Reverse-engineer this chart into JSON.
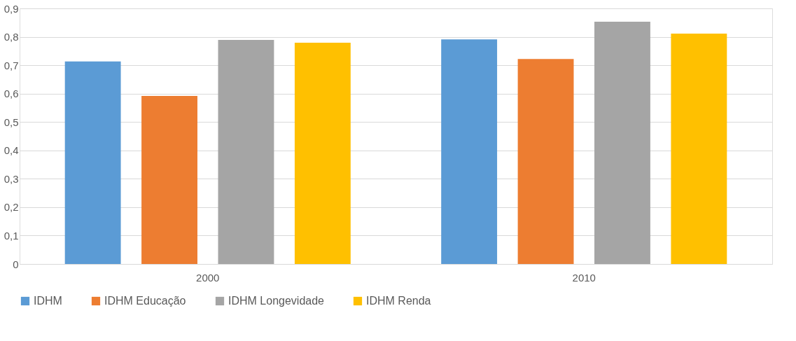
{
  "chart_data": {
    "type": "bar",
    "categories": [
      "2000",
      "2010"
    ],
    "series": [
      {
        "name": "IDHM",
        "color": "#5b9bd5",
        "values": [
          0.713,
          0.791
        ]
      },
      {
        "name": "IDHM Educação",
        "color": "#ed7d31",
        "values": [
          0.592,
          0.722
        ]
      },
      {
        "name": "IDHM Longevidade",
        "color": "#a5a5a5",
        "values": [
          0.789,
          0.853
        ]
      },
      {
        "name": "IDHM Renda",
        "color": "#ffc000",
        "values": [
          0.779,
          0.811
        ]
      }
    ],
    "ylim": [
      0,
      0.9
    ],
    "yticks": [
      0,
      {
        "value": 0.1,
        "label": "0,1"
      },
      {
        "value": 0.2,
        "label": "0,2"
      },
      {
        "value": 0.3,
        "label": "0,3"
      },
      {
        "value": 0.4,
        "label": "0,4"
      },
      {
        "value": 0.5,
        "label": "0,5"
      },
      {
        "value": 0.6,
        "label": "0,6"
      },
      {
        "value": 0.7,
        "label": "0,7"
      },
      {
        "value": 0.8,
        "label": "0,8"
      },
      {
        "value": 0.9,
        "label": "0,9"
      }
    ],
    "grid": "y",
    "legend": "bottom"
  }
}
